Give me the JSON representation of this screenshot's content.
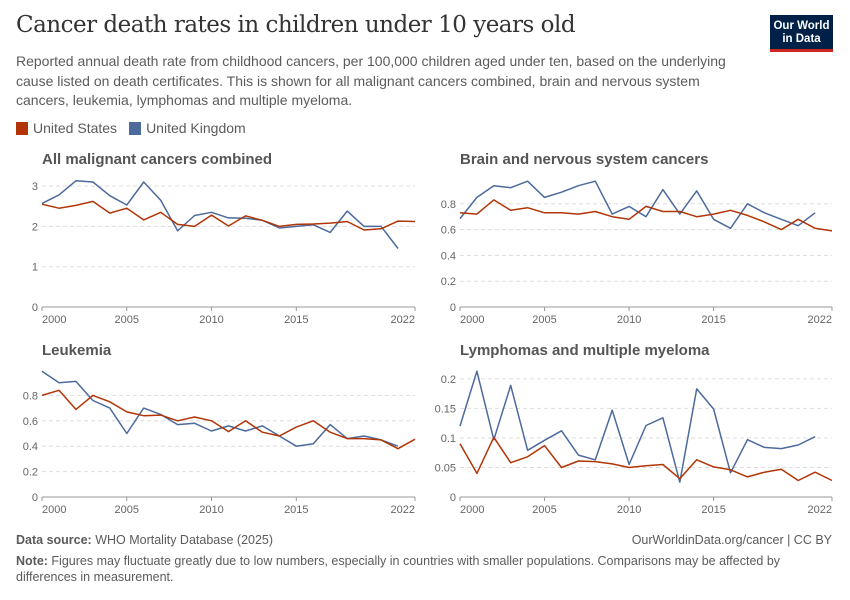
{
  "header": {
    "title": "Cancer death rates in children under 10 years old",
    "subtitle": "Reported annual death rate from childhood cancers, per 100,000 children aged under ten, based on the underlying cause listed on death certificates. This is shown for all malignant cancers combined, brain and nervous system cancers, leukemia, lymphomas and multiple myeloma.",
    "logo_text": "Our World in Data"
  },
  "legend": [
    {
      "name": "United States",
      "color": "#b13507"
    },
    {
      "name": "United Kingdom",
      "color": "#4c6a9c"
    }
  ],
  "footer": {
    "source_label": "Data source:",
    "source_text": " WHO Mortality Database (2025)",
    "url_text": "OurWorldinData.org/cancer | CC BY",
    "note_label": "Note:",
    "note_text": " Figures may fluctuate greatly due to low numbers, especially in countries with smaller populations. Comparisons may be affected by differences in measurement."
  },
  "chart_data": [
    {
      "type": "line",
      "title": "All malignant cancers combined",
      "x_ticks": [
        "2000",
        "2005",
        "2010",
        "2015",
        "2022"
      ],
      "y_ticks": [
        "0",
        "1",
        "2",
        "3"
      ],
      "xlim": [
        2000,
        2022
      ],
      "ylim": [
        0,
        3.2
      ],
      "grid": true,
      "series": [
        {
          "name": "United States",
          "x_start": 2000,
          "values": [
            2.55,
            2.45,
            2.52,
            2.62,
            2.33,
            2.45,
            2.16,
            2.35,
            2.05,
            2.0,
            2.28,
            2.01,
            2.26,
            2.15,
            2.0,
            2.05,
            2.06,
            2.08,
            2.12,
            1.91,
            1.94,
            2.13,
            2.12
          ]
        },
        {
          "name": "United Kingdom",
          "x_start": 2000,
          "values": [
            2.57,
            2.78,
            3.13,
            3.1,
            2.76,
            2.53,
            3.1,
            2.65,
            1.89,
            2.27,
            2.35,
            2.21,
            2.2,
            2.15,
            1.96,
            2.0,
            2.04,
            1.85,
            2.38,
            2.0,
            2.0,
            1.45
          ]
        }
      ]
    },
    {
      "type": "line",
      "title": "Brain and nervous system cancers",
      "x_ticks": [
        "2000",
        "2005",
        "2010",
        "2015",
        "2022"
      ],
      "y_ticks": [
        "0",
        "0.2",
        "0.4",
        "0.6",
        "0.8"
      ],
      "xlim": [
        2000,
        2022
      ],
      "ylim": [
        0,
        1.0
      ],
      "grid": true,
      "series": [
        {
          "name": "United States",
          "x_start": 2000,
          "values": [
            0.73,
            0.72,
            0.83,
            0.75,
            0.77,
            0.73,
            0.73,
            0.72,
            0.74,
            0.7,
            0.68,
            0.78,
            0.74,
            0.74,
            0.7,
            0.72,
            0.75,
            0.71,
            0.66,
            0.6,
            0.68,
            0.61,
            0.59
          ]
        },
        {
          "name": "United Kingdom",
          "x_start": 2000,
          "values": [
            0.685,
            0.85,
            0.94,
            0.925,
            0.975,
            0.85,
            0.89,
            0.94,
            0.975,
            0.72,
            0.78,
            0.7,
            0.91,
            0.72,
            0.9,
            0.68,
            0.61,
            0.8,
            0.73,
            0.68,
            0.63,
            0.73
          ]
        }
      ]
    },
    {
      "type": "line",
      "title": "Leukemia",
      "x_ticks": [
        "2000",
        "2005",
        "2010",
        "2015",
        "2022"
      ],
      "y_ticks": [
        "0",
        "0.2",
        "0.4",
        "0.6",
        "0.8"
      ],
      "xlim": [
        2000,
        2022
      ],
      "ylim": [
        0,
        1.0
      ],
      "grid": true,
      "series": [
        {
          "name": "United States",
          "x_start": 2000,
          "values": [
            0.8,
            0.84,
            0.69,
            0.8,
            0.75,
            0.67,
            0.64,
            0.645,
            0.6,
            0.63,
            0.6,
            0.515,
            0.6,
            0.51,
            0.48,
            0.55,
            0.6,
            0.51,
            0.46,
            0.46,
            0.45,
            0.38,
            0.455
          ]
        },
        {
          "name": "United Kingdom",
          "x_start": 2000,
          "values": [
            0.99,
            0.9,
            0.91,
            0.76,
            0.7,
            0.5,
            0.7,
            0.65,
            0.57,
            0.58,
            0.52,
            0.56,
            0.52,
            0.56,
            0.48,
            0.4,
            0.42,
            0.57,
            0.46,
            0.48,
            0.45,
            0.4
          ]
        }
      ]
    },
    {
      "type": "line",
      "title": "Lymphomas and multiple myeloma",
      "x_ticks": [
        "2000",
        "2005",
        "2010",
        "2015",
        "2022"
      ],
      "y_ticks": [
        "0",
        "0.05",
        "0.1",
        "0.15",
        "0.2"
      ],
      "xlim": [
        2000,
        2022
      ],
      "ylim": [
        0,
        0.215
      ],
      "grid": true,
      "series": [
        {
          "name": "United States",
          "x_start": 2000,
          "values": [
            0.09,
            0.04,
            0.101,
            0.058,
            0.068,
            0.087,
            0.05,
            0.061,
            0.06,
            0.056,
            0.05,
            0.053,
            0.055,
            0.031,
            0.063,
            0.051,
            0.046,
            0.034,
            0.042,
            0.047,
            0.028,
            0.042,
            0.028
          ]
        },
        {
          "name": "United Kingdom",
          "x_start": 2000,
          "values": [
            0.12,
            0.213,
            0.097,
            0.189,
            0.079,
            0.096,
            0.112,
            0.071,
            0.063,
            0.147,
            0.055,
            0.121,
            0.134,
            0.025,
            0.183,
            0.149,
            0.041,
            0.097,
            0.084,
            0.082,
            0.088,
            0.102
          ]
        }
      ]
    }
  ]
}
